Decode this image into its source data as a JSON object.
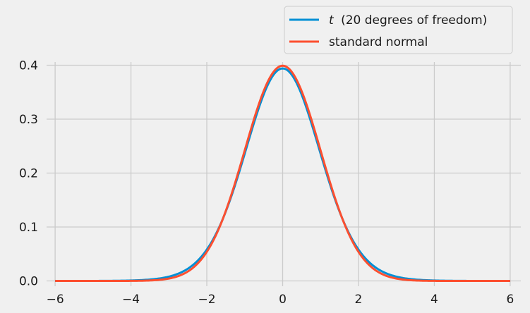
{
  "chart_data": {
    "type": "line",
    "title": "",
    "xlabel": "",
    "ylabel": "",
    "xlim": [
      -6.3,
      6.3
    ],
    "ylim": [
      -0.015,
      0.415
    ],
    "xticks": [
      "−6",
      "−4",
      "−2",
      "0",
      "2",
      "4",
      "6"
    ],
    "xtick_values": [
      -6,
      -4,
      -2,
      0,
      2,
      4,
      6
    ],
    "yticks": [
      "0.0",
      "0.1",
      "0.2",
      "0.3",
      "0.4"
    ],
    "ytick_values": [
      0,
      0.1,
      0.2,
      0.3,
      0.4
    ],
    "grid": true,
    "legend": "upper-right-outside",
    "x_range": [
      -6,
      6
    ],
    "series": [
      {
        "name": "t (20 degrees of freedom)",
        "name_italic_part": "t",
        "name_rest": "(20 degrees of freedom)",
        "distribution": "student-t",
        "df": 20,
        "color": "#008fd5"
      },
      {
        "name": "standard normal",
        "distribution": "normal",
        "mean": 0,
        "sd": 1,
        "color": "#fc4f30"
      }
    ]
  }
}
